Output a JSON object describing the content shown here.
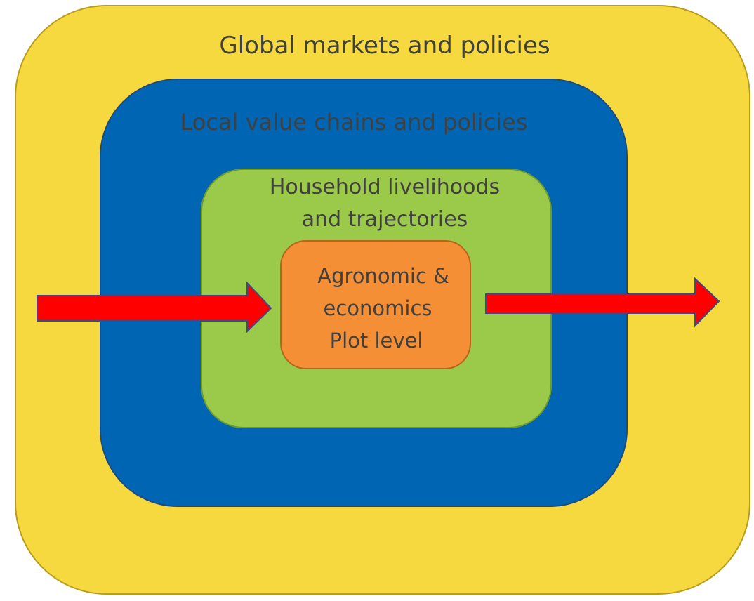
{
  "layers": [
    {
      "label": "Global markets and policies"
    },
    {
      "label": "Local value chains and policies"
    },
    {
      "label": [
        "Household livelihoods",
        "and trajectories"
      ]
    },
    {
      "label": [
        "Agronomic &",
        "economics",
        "Plot level"
      ]
    }
  ]
}
